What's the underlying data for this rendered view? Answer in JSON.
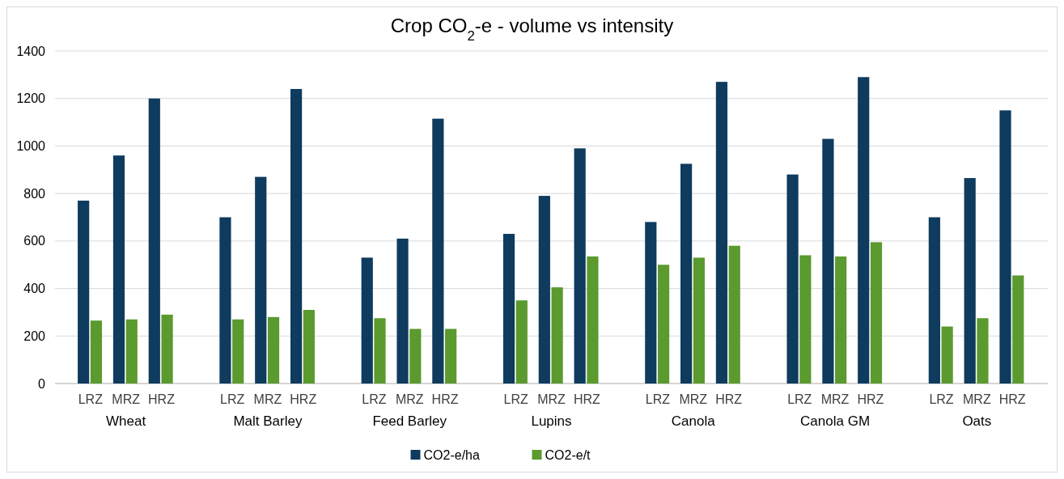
{
  "chart_data": {
    "type": "bar",
    "title": "Crop CO$_{2}$-e - volume vs intensity",
    "categories": [
      "LRZ",
      "MRZ",
      "HRZ",
      "LRZ",
      "MRZ",
      "HRZ",
      "LRZ",
      "MRZ",
      "HRZ",
      "LRZ",
      "MRZ",
      "HRZ",
      "LRZ",
      "MRZ",
      "HRZ",
      "LRZ",
      "MRZ",
      "HRZ",
      "LRZ",
      "MRZ",
      "HRZ"
    ],
    "annotations": [
      "Wheat",
      "Malt Barley",
      "Feed Barley",
      "Lupins",
      "Canola",
      "Canola GM",
      "Oats"
    ],
    "series": [
      {
        "name": "CO2-e/ha",
        "color": "#0e3b5e",
        "values": [
          770,
          960,
          1200,
          700,
          870,
          1240,
          530,
          610,
          1115,
          630,
          790,
          990,
          680,
          925,
          1270,
          880,
          1030,
          1290,
          700,
          865,
          1150
        ]
      },
      {
        "name": "CO2-e/t",
        "color": "#5b9a2f",
        "values": [
          265,
          270,
          290,
          270,
          280,
          310,
          275,
          230,
          230,
          350,
          405,
          535,
          500,
          530,
          580,
          540,
          535,
          595,
          240,
          275,
          455
        ]
      }
    ],
    "ylim": [
      0,
      1400
    ],
    "yticks": [
      0,
      200,
      400,
      600,
      800,
      1000,
      1200,
      1400
    ],
    "grid": "y",
    "legend": "bottom"
  }
}
